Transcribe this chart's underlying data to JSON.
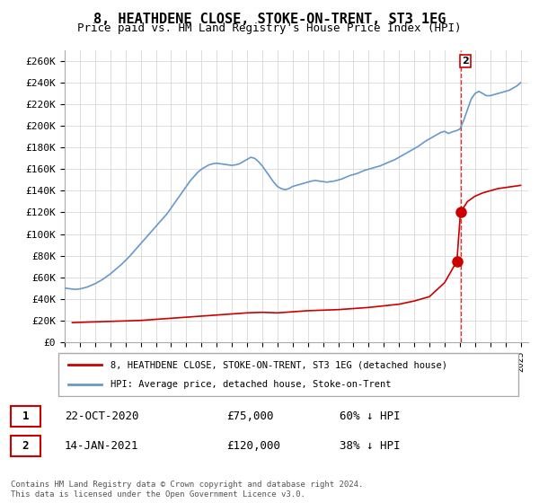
{
  "title": "8, HEATHDENE CLOSE, STOKE-ON-TRENT, ST3 1EG",
  "subtitle": "Price paid vs. HM Land Registry's House Price Index (HPI)",
  "title_fontsize": 11,
  "subtitle_fontsize": 9.5,
  "ylim": [
    0,
    270000
  ],
  "yticks": [
    0,
    20000,
    40000,
    60000,
    80000,
    100000,
    120000,
    140000,
    160000,
    180000,
    200000,
    220000,
    240000,
    260000
  ],
  "ytick_labels": [
    "£0",
    "£20K",
    "£40K",
    "£60K",
    "£80K",
    "£100K",
    "£120K",
    "£140K",
    "£160K",
    "£180K",
    "£200K",
    "£220K",
    "£240K",
    "£260K"
  ],
  "xlim_start": 1995.0,
  "xlim_end": 2025.5,
  "xtick_years": [
    1995,
    1996,
    1997,
    1998,
    1999,
    2000,
    2001,
    2002,
    2003,
    2004,
    2005,
    2006,
    2007,
    2008,
    2009,
    2010,
    2011,
    2012,
    2013,
    2014,
    2015,
    2016,
    2017,
    2018,
    2019,
    2020,
    2021,
    2022,
    2023,
    2024,
    2025
  ],
  "hpi_color": "#6699cc",
  "price_color": "#cc0000",
  "dashed_color": "#cc0000",
  "sale1_date": 2020.81,
  "sale1_price": 75000,
  "sale2_date": 2021.04,
  "sale2_price": 120000,
  "legend_label1": "8, HEATHDENE CLOSE, STOKE-ON-TRENT, ST3 1EG (detached house)",
  "legend_label2": "HPI: Average price, detached house, Stoke-on-Trent",
  "table_entries": [
    {
      "num": 1,
      "date": "22-OCT-2020",
      "price": "£75,000",
      "pct": "60% ↓ HPI"
    },
    {
      "num": 2,
      "date": "14-JAN-2021",
      "price": "£120,000",
      "pct": "38% ↓ HPI"
    }
  ],
  "footer1": "Contains HM Land Registry data © Crown copyright and database right 2024.",
  "footer2": "This data is licensed under the Open Government Licence v3.0.",
  "hpi_x": [
    1995.0,
    1995.25,
    1995.5,
    1995.75,
    1996.0,
    1996.25,
    1996.5,
    1996.75,
    1997.0,
    1997.25,
    1997.5,
    1997.75,
    1998.0,
    1998.25,
    1998.5,
    1998.75,
    1999.0,
    1999.25,
    1999.5,
    1999.75,
    2000.0,
    2000.25,
    2000.5,
    2000.75,
    2001.0,
    2001.25,
    2001.5,
    2001.75,
    2002.0,
    2002.25,
    2002.5,
    2002.75,
    2003.0,
    2003.25,
    2003.5,
    2003.75,
    2004.0,
    2004.25,
    2004.5,
    2004.75,
    2005.0,
    2005.25,
    2005.5,
    2005.75,
    2006.0,
    2006.25,
    2006.5,
    2006.75,
    2007.0,
    2007.25,
    2007.5,
    2007.75,
    2008.0,
    2008.25,
    2008.5,
    2008.75,
    2009.0,
    2009.25,
    2009.5,
    2009.75,
    2010.0,
    2010.25,
    2010.5,
    2010.75,
    2011.0,
    2011.25,
    2011.5,
    2011.75,
    2012.0,
    2012.25,
    2012.5,
    2012.75,
    2013.0,
    2013.25,
    2013.5,
    2013.75,
    2014.0,
    2014.25,
    2014.5,
    2014.75,
    2015.0,
    2015.25,
    2015.5,
    2015.75,
    2016.0,
    2016.25,
    2016.5,
    2016.75,
    2017.0,
    2017.25,
    2017.5,
    2017.75,
    2018.0,
    2018.25,
    2018.5,
    2018.75,
    2019.0,
    2019.25,
    2019.5,
    2019.75,
    2020.0,
    2020.25,
    2020.5,
    2020.75,
    2021.0,
    2021.25,
    2021.5,
    2021.75,
    2022.0,
    2022.25,
    2022.5,
    2022.75,
    2023.0,
    2023.25,
    2023.5,
    2023.75,
    2024.0,
    2024.25,
    2024.5,
    2024.75,
    2025.0
  ],
  "hpi_y": [
    50000,
    49500,
    49000,
    48800,
    49200,
    50000,
    51000,
    52500,
    54000,
    56000,
    58000,
    60500,
    63000,
    66000,
    69000,
    72000,
    75500,
    79000,
    83000,
    87000,
    91000,
    95000,
    99000,
    103000,
    107000,
    111000,
    115000,
    119000,
    124000,
    129000,
    134000,
    139000,
    144000,
    149000,
    153000,
    157000,
    160000,
    162000,
    164000,
    165000,
    165500,
    165000,
    164500,
    164000,
    163500,
    164000,
    165000,
    167000,
    169000,
    171000,
    170000,
    167000,
    163000,
    158000,
    153000,
    148000,
    144000,
    142000,
    141000,
    142000,
    144000,
    145000,
    146000,
    147000,
    148000,
    149000,
    149500,
    149000,
    148500,
    148000,
    148500,
    149000,
    150000,
    151000,
    152500,
    154000,
    155000,
    156000,
    157500,
    159000,
    160000,
    161000,
    162000,
    163000,
    164500,
    166000,
    167500,
    169000,
    171000,
    173000,
    175000,
    177000,
    179000,
    181000,
    183500,
    186000,
    188000,
    190000,
    192000,
    194000,
    195000,
    193000,
    194500,
    195500,
    197000,
    205000,
    215000,
    225000,
    230000,
    232000,
    230000,
    228000,
    228000,
    229000,
    230000,
    231000,
    232000,
    233000,
    235000,
    237000,
    240000
  ],
  "price_x": [
    1995.5,
    2000.0,
    2000.5,
    2001.0,
    2001.5,
    2002.0,
    2003.0,
    2004.0,
    2005.0,
    2006.0,
    2007.0,
    2008.0,
    2009.0,
    2010.0,
    2011.0,
    2012.0,
    2013.0,
    2014.0,
    2015.0,
    2016.0,
    2017.0,
    2018.0,
    2019.0,
    2020.0,
    2020.81,
    2021.04,
    2021.5,
    2022.0,
    2022.5,
    2023.0,
    2023.5,
    2024.0,
    2024.5,
    2025.0
  ],
  "price_y": [
    18000,
    20000,
    20500,
    21000,
    21500,
    22000,
    23000,
    24000,
    25000,
    26000,
    27000,
    27500,
    27000,
    28000,
    29000,
    29500,
    30000,
    31000,
    32000,
    33500,
    35000,
    38000,
    42000,
    55000,
    75000,
    120000,
    130000,
    135000,
    138000,
    140000,
    142000,
    143000,
    144000,
    145000
  ]
}
